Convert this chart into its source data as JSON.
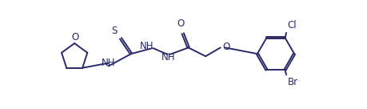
{
  "bg_color": "#ffffff",
  "line_color": "#2a2a6a",
  "text_color": "#2a2a6a",
  "lw": 1.4,
  "fs": 8.5,
  "fig_w": 4.59,
  "fig_h": 1.36,
  "dpi": 100,
  "xlim": [
    0,
    459
  ],
  "ylim": [
    0,
    136
  ]
}
